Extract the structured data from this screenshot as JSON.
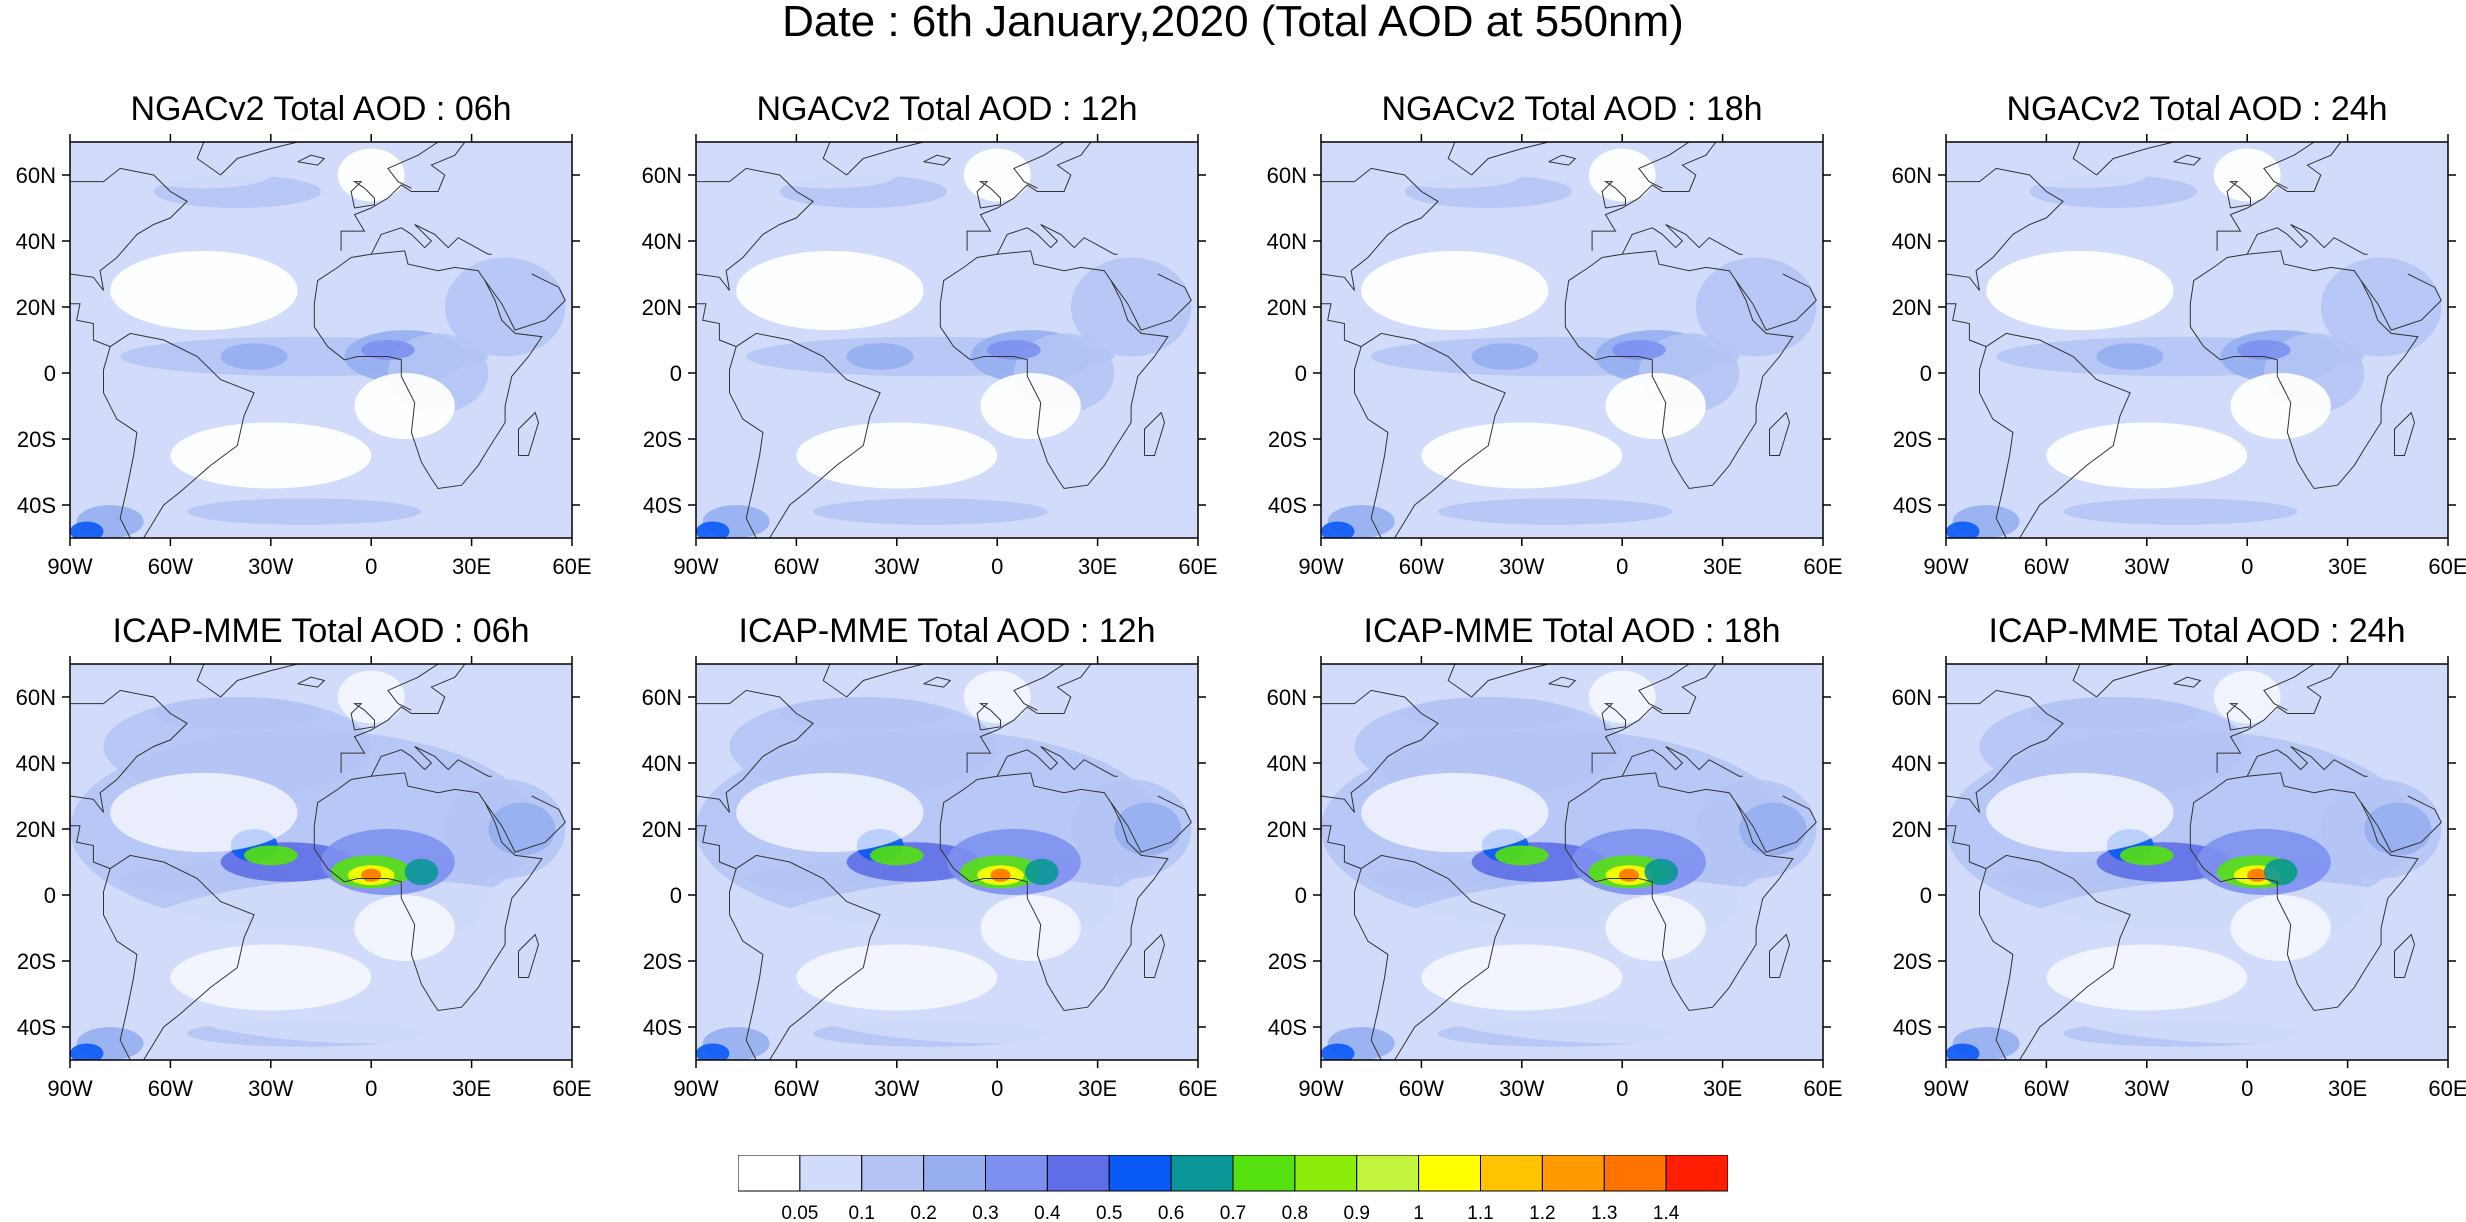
{
  "title": "Date : 6th January,2020 (Total AOD at 550nm)",
  "axes": {
    "lon_labels": [
      "90W",
      "60W",
      "30W",
      "0",
      "30E",
      "60E"
    ],
    "lon_values": [
      -90,
      -60,
      -30,
      0,
      30,
      60
    ],
    "lat_labels": [
      "60N",
      "40N",
      "20N",
      "0",
      "20S",
      "40S"
    ],
    "lat_values": [
      60,
      40,
      20,
      0,
      -20,
      -40
    ],
    "lon_range": [
      -90,
      60
    ],
    "lat_range": [
      -50,
      70
    ]
  },
  "panels": [
    {
      "title": "NGACv2 Total AOD : 06h",
      "model": "NGACv2",
      "hour": 6
    },
    {
      "title": "NGACv2 Total AOD : 12h",
      "model": "NGACv2",
      "hour": 12
    },
    {
      "title": "NGACv2 Total AOD : 18h",
      "model": "NGACv2",
      "hour": 18
    },
    {
      "title": "NGACv2 Total AOD : 24h",
      "model": "NGACv2",
      "hour": 24
    },
    {
      "title": "ICAP-MME Total AOD : 06h",
      "model": "ICAP-MME",
      "hour": 6
    },
    {
      "title": "ICAP-MME Total AOD : 12h",
      "model": "ICAP-MME",
      "hour": 12
    },
    {
      "title": "ICAP-MME Total AOD : 18h",
      "model": "ICAP-MME",
      "hour": 18
    },
    {
      "title": "ICAP-MME Total AOD : 24h",
      "model": "ICAP-MME",
      "hour": 24
    }
  ],
  "colorbar": {
    "labels": [
      "0.05",
      "0.1",
      "0.2",
      "0.3",
      "0.4",
      "0.5",
      "0.6",
      "0.7",
      "0.8",
      "0.9",
      "1",
      "1.1",
      "1.2",
      "1.3",
      "1.4"
    ],
    "colors": [
      "#ffffff",
      "#d2dcfa",
      "#b4c4f5",
      "#96aef0",
      "#7d90f0",
      "#5f6ee6",
      "#0a5af5",
      "#0a9696",
      "#55e10f",
      "#8ced0a",
      "#c3f53c",
      "#ffff00",
      "#ffc300",
      "#ff9b00",
      "#ff7300",
      "#ff1e00"
    ]
  }
}
